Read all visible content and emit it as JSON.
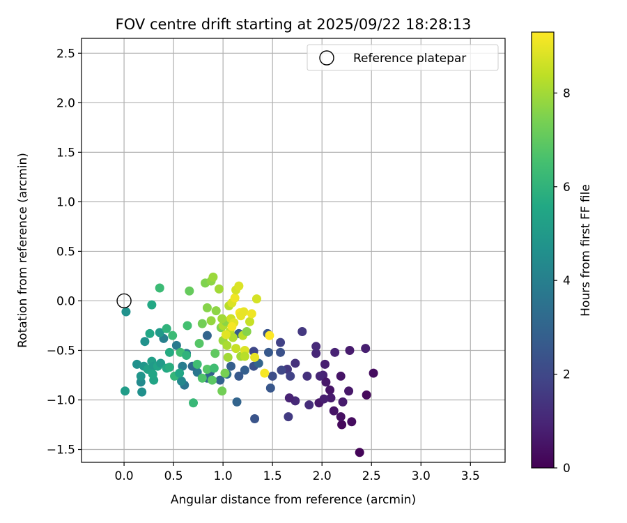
{
  "chart_data": {
    "type": "scatter",
    "title": "FOV centre drift starting at 2025/09/22 18:28:13",
    "xlabel": "Angular distance from reference (arcmin)",
    "ylabel": "Rotation from reference (arcmin)",
    "xlim": [
      -0.43,
      3.85
    ],
    "ylim": [
      -1.63,
      2.65
    ],
    "xticks": [
      "0.0",
      "0.5",
      "1.0",
      "1.5",
      "2.0",
      "2.5",
      "3.0",
      "3.5"
    ],
    "yticks": [
      "-1.5",
      "-1.0",
      "-0.5",
      "0.0",
      "0.5",
      "1.0",
      "1.5",
      "2.0",
      "2.5"
    ],
    "grid": true,
    "legend": {
      "position": "top-right",
      "label": "Reference platepar"
    },
    "reference_point": {
      "x": 0.0,
      "y": 0.0
    },
    "colorbar": {
      "label": "Hours from first FF file",
      "range": [
        0,
        9.3
      ],
      "ticks": [
        "0",
        "2",
        "4",
        "6",
        "8"
      ],
      "colormap": "viridis"
    },
    "series": [
      {
        "points": [
          {
            "x": 2.38,
            "y": -1.53,
            "h": 0.1
          },
          {
            "x": 2.2,
            "y": -1.25,
            "h": 0.2
          },
          {
            "x": 2.3,
            "y": -1.22,
            "h": 0.3
          },
          {
            "x": 2.19,
            "y": -1.17,
            "h": 0.4
          },
          {
            "x": 2.12,
            "y": -1.11,
            "h": 0.5
          },
          {
            "x": 1.97,
            "y": -1.03,
            "h": 0.6
          },
          {
            "x": 2.21,
            "y": -1.02,
            "h": 0.7
          },
          {
            "x": 2.45,
            "y": -0.95,
            "h": 0.2
          },
          {
            "x": 2.52,
            "y": -0.73,
            "h": 0.3
          },
          {
            "x": 2.44,
            "y": -0.48,
            "h": 0.8
          },
          {
            "x": 2.28,
            "y": -0.5,
            "h": 0.7
          },
          {
            "x": 2.13,
            "y": -0.52,
            "h": 0.9
          },
          {
            "x": 2.03,
            "y": -0.64,
            "h": 0.8
          },
          {
            "x": 1.94,
            "y": -0.53,
            "h": 1.0
          },
          {
            "x": 1.94,
            "y": -0.46,
            "h": 1.1
          },
          {
            "x": 2.01,
            "y": -0.75,
            "h": 0.9
          },
          {
            "x": 2.04,
            "y": -0.82,
            "h": 0.6
          },
          {
            "x": 2.08,
            "y": -0.9,
            "h": 0.5
          },
          {
            "x": 2.09,
            "y": -0.98,
            "h": 0.7
          },
          {
            "x": 2.02,
            "y": -0.99,
            "h": 0.8
          },
          {
            "x": 2.27,
            "y": -0.91,
            "h": 0.6
          },
          {
            "x": 2.19,
            "y": -0.76,
            "h": 0.5
          },
          {
            "x": 1.98,
            "y": -0.76,
            "h": 1.0
          },
          {
            "x": 1.87,
            "y": -1.05,
            "h": 1.2
          },
          {
            "x": 1.73,
            "y": -1.01,
            "h": 1.1
          },
          {
            "x": 1.67,
            "y": -0.98,
            "h": 0.9
          },
          {
            "x": 1.85,
            "y": -0.76,
            "h": 1.3
          },
          {
            "x": 1.73,
            "y": -0.63,
            "h": 1.3
          },
          {
            "x": 1.65,
            "y": -0.69,
            "h": 1.5
          },
          {
            "x": 1.8,
            "y": -0.31,
            "h": 1.5
          },
          {
            "x": 1.58,
            "y": -0.42,
            "h": 1.8
          },
          {
            "x": 1.58,
            "y": -0.52,
            "h": 2.3
          },
          {
            "x": 1.59,
            "y": -0.7,
            "h": 2.0
          },
          {
            "x": 1.68,
            "y": -0.76,
            "h": 1.8
          },
          {
            "x": 1.66,
            "y": -1.17,
            "h": 1.6
          },
          {
            "x": 1.5,
            "y": -0.76,
            "h": 2.2
          },
          {
            "x": 1.48,
            "y": -0.88,
            "h": 2.5
          },
          {
            "x": 1.46,
            "y": -0.52,
            "h": 2.6
          },
          {
            "x": 1.45,
            "y": -0.33,
            "h": 2.4
          },
          {
            "x": 1.31,
            "y": -0.51,
            "h": 2.0
          },
          {
            "x": 1.31,
            "y": -0.66,
            "h": 2.3
          },
          {
            "x": 1.36,
            "y": -0.63,
            "h": 3.0
          },
          {
            "x": 1.32,
            "y": -1.19,
            "h": 2.4
          },
          {
            "x": 1.22,
            "y": -0.7,
            "h": 2.8
          },
          {
            "x": 1.16,
            "y": -0.76,
            "h": 2.6
          },
          {
            "x": 1.14,
            "y": -1.02,
            "h": 3.0
          },
          {
            "x": 1.16,
            "y": -0.33,
            "h": 2.7
          },
          {
            "x": 1.08,
            "y": -0.66,
            "h": 2.8
          },
          {
            "x": 1.04,
            "y": -0.74,
            "h": 3.3
          },
          {
            "x": 0.97,
            "y": -0.8,
            "h": 2.9
          },
          {
            "x": 0.87,
            "y": -0.72,
            "h": 2.8
          },
          {
            "x": 0.84,
            "y": -0.35,
            "h": 3.0
          },
          {
            "x": 0.84,
            "y": -0.78,
            "h": 3.1
          },
          {
            "x": 0.74,
            "y": -0.72,
            "h": 3.7
          },
          {
            "x": 0.69,
            "y": -0.66,
            "h": 3.2
          },
          {
            "x": 0.63,
            "y": -0.53,
            "h": 3.8
          },
          {
            "x": 0.59,
            "y": -0.66,
            "h": 3.9
          },
          {
            "x": 0.61,
            "y": -0.85,
            "h": 3.6
          },
          {
            "x": 0.58,
            "y": -0.81,
            "h": 4.3
          },
          {
            "x": 0.53,
            "y": -0.45,
            "h": 3.8
          },
          {
            "x": 0.4,
            "y": -0.38,
            "h": 4.0
          },
          {
            "x": 0.21,
            "y": -0.41,
            "h": 4.7
          },
          {
            "x": 0.02,
            "y": -0.11,
            "h": 4.7
          },
          {
            "x": 0.01,
            "y": -0.91,
            "h": 5.1
          },
          {
            "x": 0.18,
            "y": -0.92,
            "h": 4.6
          },
          {
            "x": 0.17,
            "y": -0.82,
            "h": 4.4
          },
          {
            "x": 0.17,
            "y": -0.76,
            "h": 4.8
          },
          {
            "x": 0.13,
            "y": -0.64,
            "h": 4.6
          },
          {
            "x": 0.2,
            "y": -0.66,
            "h": 4.9
          },
          {
            "x": 0.24,
            "y": -0.69,
            "h": 5.3
          },
          {
            "x": 0.28,
            "y": -0.61,
            "h": 5.2
          },
          {
            "x": 0.3,
            "y": -0.66,
            "h": 5.0
          },
          {
            "x": 0.3,
            "y": -0.8,
            "h": 5.4
          },
          {
            "x": 0.29,
            "y": -0.74,
            "h": 5.5
          },
          {
            "x": 0.34,
            "y": -0.66,
            "h": 5.4
          },
          {
            "x": 0.37,
            "y": -0.63,
            "h": 5.0
          },
          {
            "x": 0.36,
            "y": -0.32,
            "h": 5.0
          },
          {
            "x": 0.26,
            "y": -0.33,
            "h": 5.5
          },
          {
            "x": 0.28,
            "y": -0.04,
            "h": 5.6
          },
          {
            "x": 0.36,
            "y": 0.13,
            "h": 6.3
          },
          {
            "x": 0.43,
            "y": -0.68,
            "h": 5.6
          },
          {
            "x": 0.46,
            "y": -0.67,
            "h": 5.8
          },
          {
            "x": 0.46,
            "y": -0.52,
            "h": 5.7
          },
          {
            "x": 0.43,
            "y": -0.28,
            "h": 6.0
          },
          {
            "x": 0.49,
            "y": -0.35,
            "h": 6.3
          },
          {
            "x": 0.51,
            "y": -0.76,
            "h": 6.1
          },
          {
            "x": 0.56,
            "y": -0.73,
            "h": 5.5
          },
          {
            "x": 0.57,
            "y": -0.52,
            "h": 6.4
          },
          {
            "x": 0.63,
            "y": -0.55,
            "h": 6.0
          },
          {
            "x": 0.64,
            "y": -0.25,
            "h": 6.5
          },
          {
            "x": 0.66,
            "y": 0.1,
            "h": 7.1
          },
          {
            "x": 0.7,
            "y": -1.03,
            "h": 6.2
          },
          {
            "x": 0.74,
            "y": -0.64,
            "h": 6.4
          },
          {
            "x": 0.76,
            "y": -0.43,
            "h": 6.8
          },
          {
            "x": 0.79,
            "y": -0.78,
            "h": 6.7
          },
          {
            "x": 0.79,
            "y": -0.23,
            "h": 7.3
          },
          {
            "x": 0.82,
            "y": 0.18,
            "h": 7.5
          },
          {
            "x": 0.84,
            "y": -0.69,
            "h": 6.8
          },
          {
            "x": 0.84,
            "y": -0.07,
            "h": 7.6
          },
          {
            "x": 0.88,
            "y": 0.2,
            "h": 7.7
          },
          {
            "x": 0.9,
            "y": 0.24,
            "h": 7.9
          },
          {
            "x": 0.89,
            "y": -0.8,
            "h": 6.9
          },
          {
            "x": 0.91,
            "y": -0.68,
            "h": 6.4
          },
          {
            "x": 0.88,
            "y": -0.2,
            "h": 7.8
          },
          {
            "x": 0.92,
            "y": -0.53,
            "h": 7.0
          },
          {
            "x": 0.93,
            "y": -0.1,
            "h": 7.7
          },
          {
            "x": 0.96,
            "y": 0.12,
            "h": 8.0
          },
          {
            "x": 0.99,
            "y": -0.91,
            "h": 7.3
          },
          {
            "x": 0.98,
            "y": -0.27,
            "h": 7.5
          },
          {
            "x": 1.0,
            "y": -0.4,
            "h": 7.9
          },
          {
            "x": 1.0,
            "y": -0.25,
            "h": 8.2
          },
          {
            "x": 1.02,
            "y": -0.73,
            "h": 7.4
          },
          {
            "x": 1.03,
            "y": -0.21,
            "h": 7.7
          },
          {
            "x": 1.04,
            "y": -0.45,
            "h": 8.1
          },
          {
            "x": 1.05,
            "y": -0.57,
            "h": 8.0
          },
          {
            "x": 1.06,
            "y": -0.05,
            "h": 8.3
          },
          {
            "x": 1.07,
            "y": -0.31,
            "h": 8.4
          },
          {
            "x": 1.08,
            "y": -0.18,
            "h": 8.6
          },
          {
            "x": 1.09,
            "y": -0.02,
            "h": 8.8
          },
          {
            "x": 1.1,
            "y": -0.37,
            "h": 8.2
          },
          {
            "x": 1.11,
            "y": -0.22,
            "h": 8.9
          },
          {
            "x": 1.12,
            "y": 0.03,
            "h": 9.1
          },
          {
            "x": 1.13,
            "y": 0.11,
            "h": 8.7
          },
          {
            "x": 1.13,
            "y": -0.48,
            "h": 8.5
          },
          {
            "x": 1.16,
            "y": 0.15,
            "h": 8.8
          },
          {
            "x": 1.17,
            "y": -0.12,
            "h": 9.2
          },
          {
            "x": 1.18,
            "y": -0.56,
            "h": 8.0
          },
          {
            "x": 1.2,
            "y": -0.35,
            "h": 8.3
          },
          {
            "x": 1.21,
            "y": -0.11,
            "h": 9.0
          },
          {
            "x": 1.22,
            "y": -0.5,
            "h": 8.8
          },
          {
            "x": 1.22,
            "y": -0.56,
            "h": 8.3
          },
          {
            "x": 1.24,
            "y": -0.31,
            "h": 7.6
          },
          {
            "x": 1.27,
            "y": -0.21,
            "h": 8.5
          },
          {
            "x": 1.29,
            "y": -0.13,
            "h": 9.1
          },
          {
            "x": 1.32,
            "y": -0.57,
            "h": 9.0
          },
          {
            "x": 1.34,
            "y": 0.02,
            "h": 8.7
          },
          {
            "x": 1.42,
            "y": -0.73,
            "h": 9.2
          },
          {
            "x": 1.47,
            "y": -0.35,
            "h": 9.3
          },
          {
            "x": 1.18,
            "y": -0.15,
            "h": 9.0
          },
          {
            "x": 1.03,
            "y": -0.34,
            "h": 8.9
          },
          {
            "x": 1.09,
            "y": -0.26,
            "h": 9.2
          },
          {
            "x": 0.99,
            "y": -0.18,
            "h": 8.0
          }
        ]
      }
    ]
  }
}
